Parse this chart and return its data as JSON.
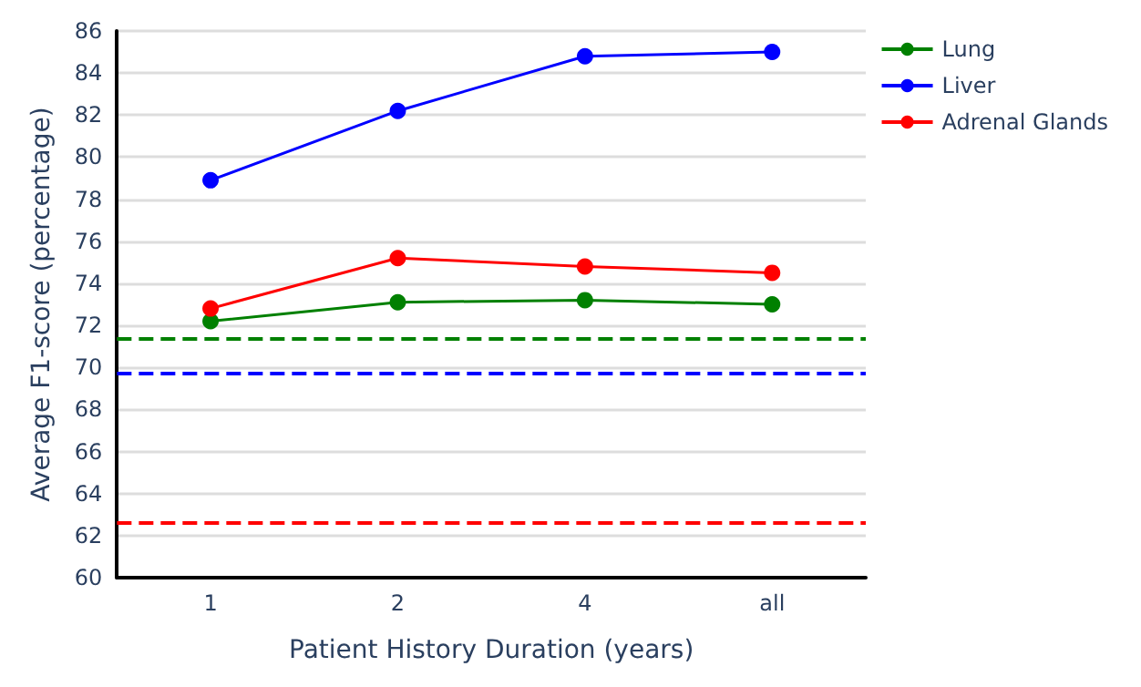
{
  "chart_data": {
    "type": "line",
    "xlabel": "Patient History Duration (years)",
    "ylabel": "Average F1-score (percentage)",
    "categories": [
      "1",
      "2",
      "4",
      "all"
    ],
    "series": [
      {
        "name": "Lung",
        "color": "#008000",
        "values": [
          72.2,
          73.1,
          73.2,
          73.0
        ]
      },
      {
        "name": "Liver",
        "color": "#0000ff",
        "values": [
          78.9,
          82.2,
          84.8,
          85.0
        ]
      },
      {
        "name": "Adrenal Glands",
        "color": "#ff0000",
        "values": [
          72.8,
          75.2,
          74.8,
          74.5
        ]
      }
    ],
    "ref_lines": [
      {
        "axis": "y",
        "value": 71.4,
        "color": "#008000",
        "line_style": "dashed"
      },
      {
        "axis": "y",
        "value": 69.7,
        "color": "#0000ff",
        "line_style": "dashed"
      },
      {
        "axis": "y",
        "value": 62.6,
        "color": "#ff0000",
        "line_style": "dashed"
      }
    ],
    "ylim": [
      60,
      86
    ],
    "yticks": [
      60,
      62,
      64,
      66,
      68,
      70,
      72,
      74,
      76,
      78,
      80,
      82,
      84,
      86
    ],
    "grid": "y",
    "legend": "top right",
    "marker": "circle",
    "line_style": "solid"
  }
}
